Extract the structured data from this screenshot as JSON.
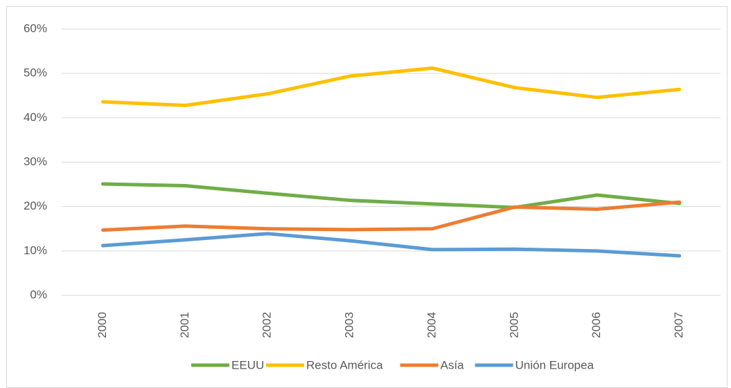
{
  "chart_data": {
    "type": "line",
    "categories": [
      "2000",
      "2001",
      "2002",
      "2003",
      "2004",
      "2005",
      "2006",
      "2007"
    ],
    "series": [
      {
        "name": "EEUU",
        "color": "#70ad47",
        "values": [
          25.1,
          24.7,
          23.0,
          21.4,
          20.6,
          19.8,
          22.6,
          20.7
        ]
      },
      {
        "name": "Resto América",
        "color": "#ffc000",
        "values": [
          43.6,
          42.8,
          45.4,
          49.4,
          51.2,
          46.8,
          44.6,
          46.4
        ]
      },
      {
        "name": "Asía",
        "color": "#ed7d31",
        "values": [
          14.7,
          15.6,
          15.0,
          14.8,
          15.0,
          19.9,
          19.4,
          21.0
        ]
      },
      {
        "name": "Unión Europea",
        "color": "#5b9bd5",
        "values": [
          11.2,
          12.5,
          13.9,
          12.3,
          10.3,
          10.4,
          10.0,
          8.9
        ]
      }
    ],
    "ylim": [
      0,
      60
    ],
    "yticks": [
      {
        "value": 0,
        "label": "0%"
      },
      {
        "value": 10,
        "label": "10%"
      },
      {
        "value": 20,
        "label": "20%"
      },
      {
        "value": 30,
        "label": "30%"
      },
      {
        "value": 40,
        "label": "40%"
      },
      {
        "value": 50,
        "label": "50%"
      },
      {
        "value": 60,
        "label": "60%"
      }
    ],
    "grid": true,
    "legend": "bottom"
  }
}
